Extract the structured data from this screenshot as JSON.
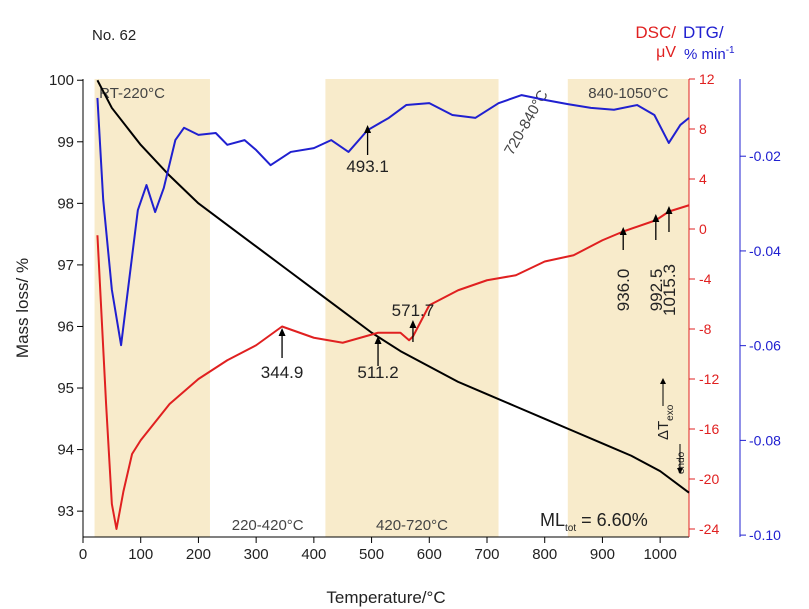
{
  "chart_data": {
    "type": "line",
    "title": "No. 62",
    "x_label": "Temperature/°C",
    "y_label": "Mass loss/ %",
    "y2_label": [
      "DSC/",
      "μV"
    ],
    "y3_label": [
      "DTG/",
      "% min",
      "-1"
    ],
    "xlim": [
      0,
      1050
    ],
    "xticks": [
      0,
      100,
      200,
      300,
      400,
      500,
      600,
      700,
      800,
      900,
      1000
    ],
    "ylim": [
      92.58,
      100.02
    ],
    "yticks": [
      93,
      94,
      95,
      96,
      97,
      98,
      99,
      100
    ],
    "y2lim": [
      -24.64,
      12
    ],
    "y2ticks": [
      -24,
      -20,
      -16,
      -12,
      -8,
      -4,
      0,
      4,
      8,
      12
    ],
    "y3lim": [
      -0.1004,
      -0.0037
    ],
    "y3ticks": [
      {
        "value": -0.1,
        "label": "-0.10"
      },
      -0.08,
      -0.06,
      -0.04,
      -0.02
    ],
    "regions": [
      {
        "range": [
          20,
          220
        ],
        "label": "RT-220°C"
      },
      {
        "range": [
          220,
          420
        ],
        "label": "220-420°C"
      },
      {
        "range": [
          420,
          720
        ],
        "label": "420-720°C"
      },
      {
        "range": [
          720,
          840
        ],
        "label": "720-840°C"
      },
      {
        "range": [
          840,
          1050
        ],
        "label": "840-1050°C"
      }
    ],
    "region_color": "#f8ebcb",
    "series": [
      {
        "color": "#000000",
        "axis": "y",
        "x": [
          25,
          50,
          100,
          150,
          200,
          250,
          300,
          350,
          400,
          450,
          500,
          550,
          600,
          650,
          700,
          750,
          800,
          850,
          900,
          950,
          1000,
          1050
        ],
        "values": [
          100,
          99.55,
          98.95,
          98.45,
          98.0,
          97.65,
          97.3,
          96.95,
          96.6,
          96.25,
          95.9,
          95.6,
          95.35,
          95.1,
          94.9,
          94.7,
          94.5,
          94.3,
          94.1,
          93.9,
          93.65,
          93.3
        ]
      },
      {
        "color": "#e02020",
        "axis": "y2",
        "x": [
          25,
          40,
          50,
          58,
          70,
          85,
          100,
          150,
          200,
          250,
          300,
          344.9,
          400,
          450,
          511.2,
          550,
          565,
          571.7,
          600,
          650,
          700,
          750,
          800,
          850,
          900,
          936,
          992.5,
          1015.3,
          1050
        ],
        "values": [
          -0.5,
          -14,
          -22,
          -24,
          -21,
          -18,
          -16.9,
          -14,
          -12,
          -10.5,
          -9.3,
          -7.8,
          -8.7,
          -9.1,
          -8.3,
          -8.3,
          -8.9,
          -8.6,
          -6.1,
          -4.9,
          -4.1,
          -3.7,
          -2.6,
          -2.1,
          -0.9,
          -0.2,
          0.7,
          1.4,
          1.9
        ]
      },
      {
        "color": "#2020d0",
        "axis": "y3",
        "x": [
          25,
          35,
          50,
          66,
          80,
          95,
          110,
          125,
          140,
          160,
          175,
          200,
          230,
          250,
          280,
          300,
          325,
          360,
          400,
          430,
          460,
          493.1,
          530,
          560,
          600,
          640,
          680,
          720,
          760,
          800,
          840,
          880,
          920,
          960,
          990,
          1015,
          1035,
          1050
        ],
        "values": [
          -0.0077,
          -0.0292,
          -0.0482,
          -0.0599,
          -0.0461,
          -0.0314,
          -0.0261,
          -0.0318,
          -0.0267,
          -0.0166,
          -0.014,
          -0.0155,
          -0.0151,
          -0.0176,
          -0.0166,
          -0.0187,
          -0.0219,
          -0.0191,
          -0.0183,
          -0.0166,
          -0.0191,
          -0.0145,
          -0.0119,
          -0.0092,
          -0.0088,
          -0.0113,
          -0.0119,
          -0.0088,
          -0.0071,
          -0.0081,
          -0.009,
          -0.0098,
          -0.0102,
          -0.0092,
          -0.0113,
          -0.0172,
          -0.0134,
          -0.0119
        ]
      }
    ],
    "peaks": [
      493.1,
      344.9,
      511.2,
      571.7,
      936,
      992.5,
      1015.3
    ],
    "peak_labels": [
      "493.1",
      "344.9",
      "511.2",
      "571.7",
      "936.0",
      "992.5",
      "1015.3"
    ],
    "ml_text": [
      "ML",
      "tot",
      " = 6.60%"
    ],
    "dt_text": [
      "ΔT",
      "exo",
      "endo"
    ]
  }
}
